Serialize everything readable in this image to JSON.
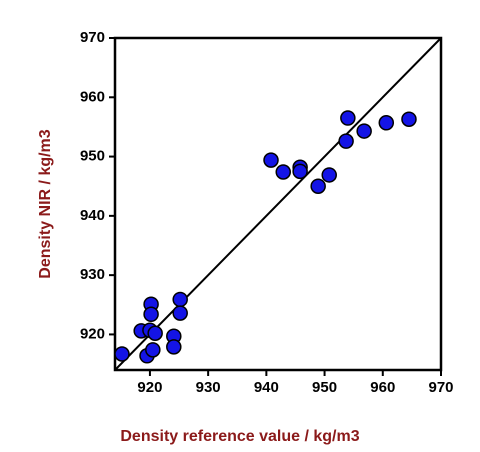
{
  "chart_data": {
    "type": "scatter",
    "x_label": "Density reference value / kg/m3",
    "y_label": "Density NIR / kg/m3",
    "series": [
      {
        "color": "#1414e6",
        "x": [
          915.2,
          918.5,
          919.5,
          920.5,
          920.2,
          920.2,
          920.0,
          920.9,
          924.1,
          924.1,
          925.2,
          925.2,
          940.8,
          942.9,
          945.8,
          945.8,
          948.9,
          950.8,
          953.7,
          954.0,
          956.8,
          960.6,
          964.5
        ],
        "values": [
          916.7,
          920.6,
          916.4,
          917.4,
          925.1,
          923.4,
          920.7,
          920.2,
          919.7,
          917.9,
          925.9,
          923.6,
          949.4,
          947.4,
          948.2,
          947.5,
          945.0,
          946.9,
          952.6,
          956.5,
          954.3,
          955.7,
          956.3
        ]
      }
    ],
    "xlim": [
      914,
      970
    ],
    "ylim": [
      914,
      970
    ],
    "xticks": [
      920,
      930,
      940,
      950,
      960,
      970
    ],
    "yticks": [
      920,
      930,
      940,
      950,
      960,
      970
    ],
    "identity_line": true,
    "grid": false
  }
}
